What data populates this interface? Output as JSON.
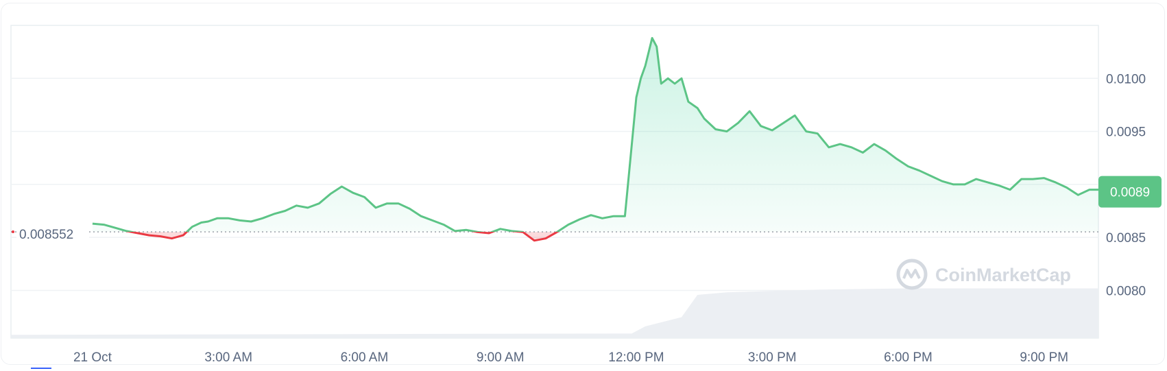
{
  "chart_data": {
    "type": "area",
    "title": "",
    "xlabel": "",
    "ylabel": "",
    "x_tick_labels": [
      "21 Oct",
      "3:00 AM",
      "6:00 AM",
      "9:00 AM",
      "12:00 PM",
      "3:00 PM",
      "6:00 PM",
      "9:00 PM"
    ],
    "x_tick_hours": [
      0,
      3,
      6,
      9,
      12,
      15,
      18,
      21
    ],
    "x_range_hours": [
      -1.8,
      22.2
    ],
    "y_tick_labels": [
      "0.0100",
      "0.0095",
      "0.0085",
      "0.0080"
    ],
    "y_tick_values": [
      0.01,
      0.0095,
      0.0085,
      0.008
    ],
    "ylim": [
      0.00755,
      0.0105
    ],
    "baseline_value": 0.008552,
    "baseline_label": "0.008552",
    "current_price_label": "0.0089",
    "current_price_value": 0.00893,
    "grid": true,
    "watermark": "CoinMarketCap",
    "colors": {
      "up": "#16c784",
      "up_line": "#5cc486",
      "down": "#ea3943",
      "grid": "#eff2f5",
      "tag": "#5cc486",
      "volume": "#eceff3"
    },
    "series": [
      {
        "x": [
          0.0,
          0.25,
          0.5,
          0.75,
          1.0,
          1.25,
          1.5,
          1.75,
          2.0,
          2.2,
          2.4,
          2.55,
          2.75,
          3.0,
          3.25,
          3.5,
          3.75,
          4.0,
          4.25,
          4.5,
          4.75,
          5.0,
          5.25,
          5.5,
          5.75,
          6.0,
          6.25,
          6.5,
          6.75,
          7.0,
          7.25,
          7.5,
          7.75,
          8.0,
          8.25,
          8.5,
          8.75,
          9.0,
          9.25,
          9.5,
          9.75,
          10.0,
          10.25,
          10.5,
          10.75,
          11.0,
          11.25,
          11.5,
          11.75,
          12.0,
          12.1,
          12.2,
          12.35,
          12.45,
          12.55,
          12.7,
          12.85,
          13.0,
          13.15,
          13.35,
          13.5,
          13.75,
          14.0,
          14.25,
          14.5,
          14.75,
          15.0,
          15.25,
          15.5,
          15.75,
          16.0,
          16.25,
          16.5,
          16.75,
          17.0,
          17.25,
          17.5,
          17.75,
          18.0,
          18.25,
          18.5,
          18.75,
          19.0,
          19.25,
          19.5,
          19.75,
          20.0,
          20.25,
          20.5,
          20.75,
          21.0,
          21.25,
          21.5,
          21.75,
          22.0,
          22.2
        ],
        "values": [
          0.00863,
          0.00862,
          0.00859,
          0.00856,
          0.00854,
          0.00852,
          0.00851,
          0.00849,
          0.00852,
          0.0086,
          0.00864,
          0.00865,
          0.00868,
          0.00868,
          0.00866,
          0.00865,
          0.00868,
          0.00872,
          0.00875,
          0.0088,
          0.00878,
          0.00882,
          0.00891,
          0.00898,
          0.00892,
          0.00888,
          0.00878,
          0.00882,
          0.00882,
          0.00877,
          0.0087,
          0.00866,
          0.00862,
          0.00856,
          0.00857,
          0.00855,
          0.00854,
          0.00858,
          0.00856,
          0.00855,
          0.00847,
          0.00849,
          0.00855,
          0.00862,
          0.00867,
          0.00871,
          0.00868,
          0.0087,
          0.0087,
          0.00982,
          0.01,
          0.01012,
          0.01038,
          0.0103,
          0.00995,
          0.01,
          0.00995,
          0.01,
          0.00978,
          0.00972,
          0.00962,
          0.00952,
          0.0095,
          0.00958,
          0.00969,
          0.00955,
          0.00951,
          0.00958,
          0.00965,
          0.0095,
          0.00948,
          0.00935,
          0.00938,
          0.00935,
          0.0093,
          0.00938,
          0.00932,
          0.00924,
          0.00917,
          0.00913,
          0.00908,
          0.00903,
          0.009,
          0.009,
          0.00905,
          0.00902,
          0.00899,
          0.00895,
          0.00905,
          0.00905,
          0.00906,
          0.00902,
          0.00897,
          0.0089,
          0.00895,
          0.00895
        ]
      }
    ],
    "volume": {
      "x": [
        -1.8,
        11.9,
        12.2,
        13.0,
        13.35,
        14.0,
        16.0,
        18.0,
        22.2
      ],
      "values": [
        0.05,
        0.07,
        0.18,
        0.32,
        0.66,
        0.7,
        0.74,
        0.76,
        0.76
      ]
    }
  }
}
